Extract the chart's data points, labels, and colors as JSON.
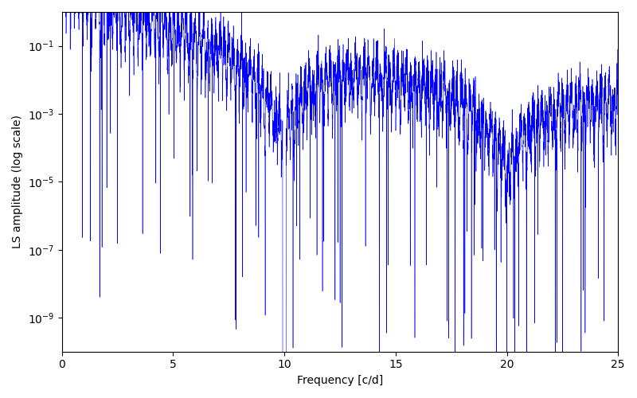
{
  "xlabel": "Frequency [c/d]",
  "ylabel": "LS amplitude (log scale)",
  "line_color": "#0000ff",
  "background_color": "#ffffff",
  "xlim": [
    0,
    25
  ],
  "ylim": [
    1e-10,
    1.0
  ],
  "yticks": [
    1e-09,
    1e-07,
    1e-05,
    0.001,
    0.1
  ],
  "xticks": [
    0,
    5,
    10,
    15,
    20,
    25
  ],
  "figsize": [
    8.0,
    5.0
  ],
  "dpi": 100,
  "seed": 42,
  "n_points": 5000,
  "freq_max": 25.0,
  "linewidth": 0.4
}
